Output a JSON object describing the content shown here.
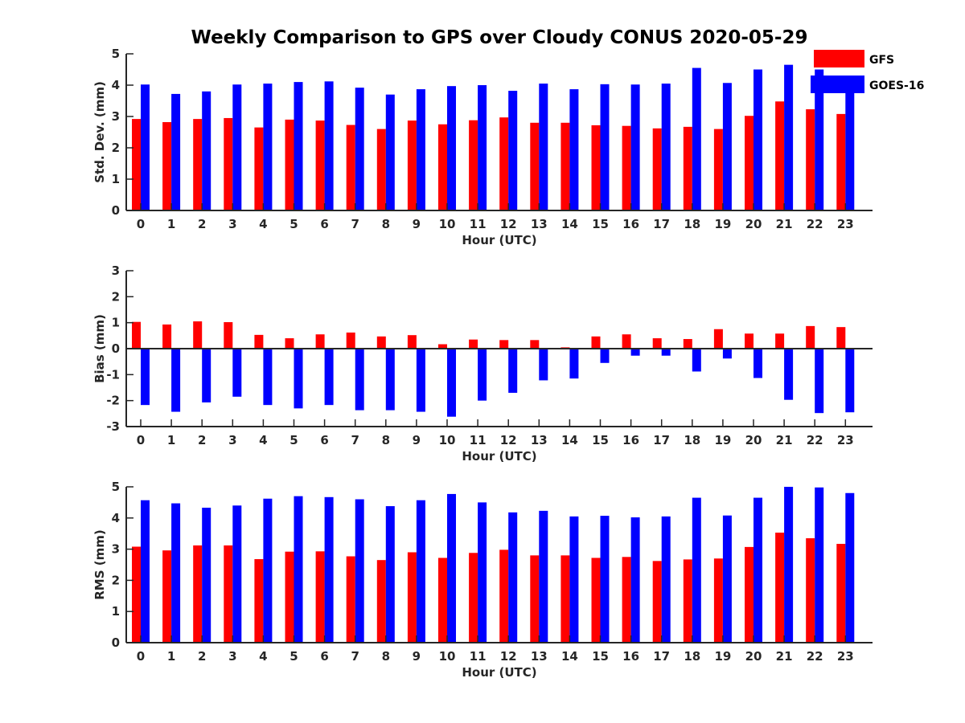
{
  "figure": {
    "title": "Weekly Comparison to GPS over Cloudy CONUS 2020-05-29"
  },
  "legend": {
    "placement": "top-right",
    "items": [
      {
        "label": "GFS",
        "color": "#ff0000"
      },
      {
        "label": "GOES-16",
        "color": "#0000ff"
      }
    ]
  },
  "chart_data": [
    {
      "type": "bar",
      "ylabel": "Std. Dev. (mm)",
      "xlabel": "Hour (UTC)",
      "ylim": [
        0,
        5
      ],
      "yticks": [
        0,
        1,
        2,
        3,
        4,
        5
      ],
      "grid": false,
      "categories": [
        "0",
        "1",
        "2",
        "3",
        "4",
        "5",
        "6",
        "7",
        "8",
        "9",
        "10",
        "11",
        "12",
        "13",
        "14",
        "15",
        "16",
        "17",
        "18",
        "19",
        "20",
        "21",
        "22",
        "23"
      ],
      "series": [
        {
          "name": "GFS",
          "color": "#ff0000",
          "values": [
            2.92,
            2.82,
            2.92,
            2.95,
            2.65,
            2.9,
            2.87,
            2.73,
            2.6,
            2.87,
            2.75,
            2.88,
            2.97,
            2.8,
            2.8,
            2.72,
            2.7,
            2.62,
            2.67,
            2.6,
            3.02,
            3.48,
            3.23,
            3.08
          ]
        },
        {
          "name": "GOES-16",
          "color": "#0000ff",
          "values": [
            4.02,
            3.72,
            3.8,
            4.02,
            4.05,
            4.1,
            4.12,
            3.92,
            3.7,
            3.87,
            3.97,
            4.0,
            3.82,
            4.05,
            3.87,
            4.03,
            4.02,
            4.05,
            4.55,
            4.07,
            4.5,
            4.65,
            4.5,
            4.3
          ]
        }
      ]
    },
    {
      "type": "bar",
      "ylabel": "Bias (mm)",
      "xlabel": "Hour (UTC)",
      "ylim": [
        -3,
        3
      ],
      "yticks": [
        -3,
        -2,
        -1,
        0,
        1,
        2,
        3
      ],
      "grid": false,
      "categories": [
        "0",
        "1",
        "2",
        "3",
        "4",
        "5",
        "6",
        "7",
        "8",
        "9",
        "10",
        "11",
        "12",
        "13",
        "14",
        "15",
        "16",
        "17",
        "18",
        "19",
        "20",
        "21",
        "22",
        "23"
      ],
      "series": [
        {
          "name": "GFS",
          "color": "#ff0000",
          "values": [
            1.03,
            0.93,
            1.05,
            1.02,
            0.53,
            0.4,
            0.55,
            0.62,
            0.47,
            0.52,
            0.17,
            0.35,
            0.33,
            0.33,
            0.05,
            0.47,
            0.55,
            0.4,
            0.37,
            0.75,
            0.58,
            0.58,
            0.87,
            0.83
          ]
        },
        {
          "name": "GOES-16",
          "color": "#0000ff",
          "values": [
            -2.17,
            -2.43,
            -2.07,
            -1.85,
            -2.17,
            -2.3,
            -2.17,
            -2.37,
            -2.37,
            -2.43,
            -2.62,
            -2.0,
            -1.7,
            -1.22,
            -1.15,
            -0.55,
            -0.27,
            -0.27,
            -0.88,
            -0.38,
            -1.13,
            -1.97,
            -2.48,
            -2.45
          ]
        }
      ]
    },
    {
      "type": "bar",
      "ylabel": "RMS (mm)",
      "xlabel": "Hour (UTC)",
      "ylim": [
        0,
        5
      ],
      "yticks": [
        0,
        1,
        2,
        3,
        4,
        5
      ],
      "grid": false,
      "categories": [
        "0",
        "1",
        "2",
        "3",
        "4",
        "5",
        "6",
        "7",
        "8",
        "9",
        "10",
        "11",
        "12",
        "13",
        "14",
        "15",
        "16",
        "17",
        "18",
        "19",
        "20",
        "21",
        "22",
        "23"
      ],
      "series": [
        {
          "name": "GFS",
          "color": "#ff0000",
          "values": [
            3.08,
            2.96,
            3.12,
            3.12,
            2.68,
            2.92,
            2.93,
            2.77,
            2.65,
            2.9,
            2.72,
            2.88,
            2.98,
            2.8,
            2.8,
            2.72,
            2.75,
            2.62,
            2.67,
            2.7,
            3.07,
            3.53,
            3.35,
            3.17
          ]
        },
        {
          "name": "GOES-16",
          "color": "#0000ff",
          "values": [
            4.57,
            4.47,
            4.33,
            4.4,
            4.62,
            4.7,
            4.67,
            4.6,
            4.38,
            4.57,
            4.77,
            4.5,
            4.18,
            4.23,
            4.05,
            4.07,
            4.02,
            4.05,
            4.65,
            4.08,
            4.65,
            5.0,
            4.98,
            4.8
          ]
        }
      ]
    }
  ]
}
